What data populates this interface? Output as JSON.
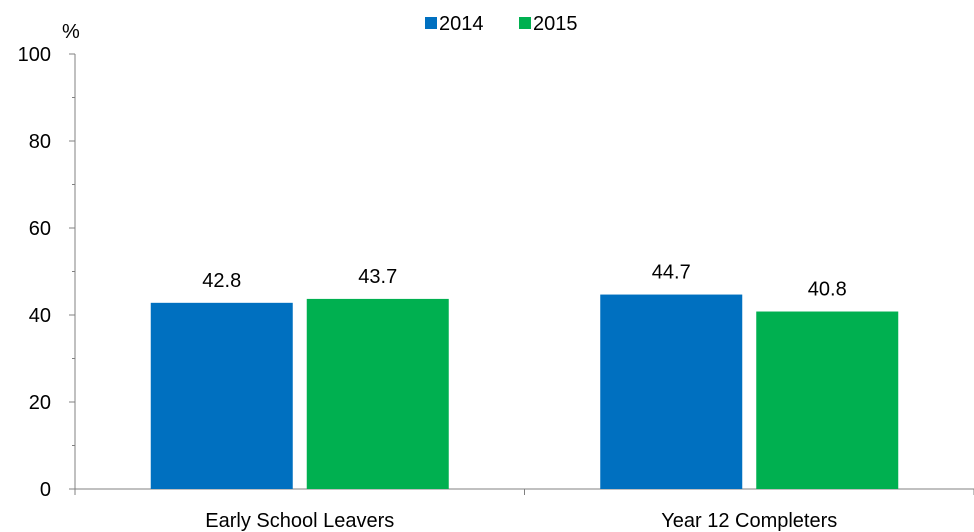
{
  "chart_data": {
    "type": "bar",
    "categories": [
      "Early School Leavers",
      "Year 12 Completers"
    ],
    "series": [
      {
        "name": "2014",
        "values": [
          42.8,
          44.7
        ],
        "color": "#0070C0"
      },
      {
        "name": "2015",
        "values": [
          43.7,
          40.8
        ],
        "color": "#00B050"
      }
    ],
    "ylabel": "%",
    "ylim": [
      0,
      100
    ],
    "yticks": [
      0,
      20,
      40,
      60,
      80,
      100
    ],
    "legend_position": "top-center",
    "grid": false
  }
}
